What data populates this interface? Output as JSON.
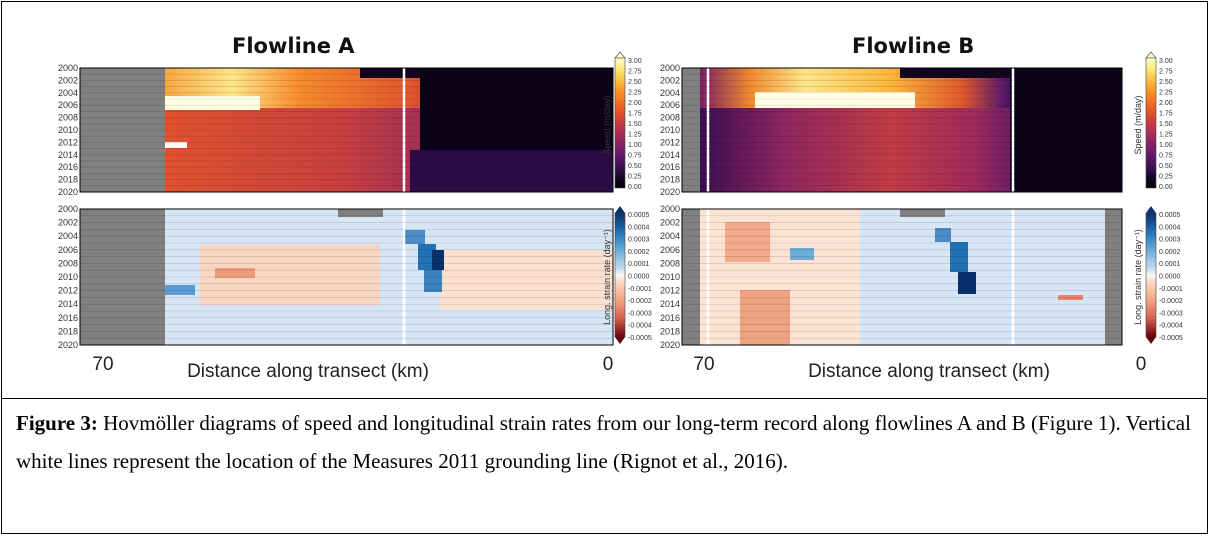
{
  "panels": [
    {
      "title": "Flowline A",
      "xlabel": "Distance along transect (km)",
      "x_ticks": [
        "70",
        "0"
      ],
      "years": [
        "2000",
        "2002",
        "2004",
        "2006",
        "2008",
        "2010",
        "2012",
        "2014",
        "2016",
        "2018",
        "2020"
      ],
      "speed_colorbar_label": "Speed (m/day)",
      "speed_ticks": [
        "3.00",
        "2.75",
        "2.50",
        "2.25",
        "2.00",
        "1.75",
        "1.50",
        "1.25",
        "1.00",
        "0.75",
        "0.50",
        "0.25",
        "0.00"
      ],
      "strain_colorbar_label": "Long. strain rate (day⁻¹)",
      "strain_ticks": [
        "0.0005",
        "0.0004",
        "0.0003",
        "0.0002",
        "0.0001",
        "0.0000",
        "-0.0001",
        "-0.0002",
        "-0.0003",
        "-0.0004",
        "-0.0005"
      ]
    },
    {
      "title": "Flowline B",
      "xlabel": "Distance along transect (km)",
      "x_ticks": [
        "70",
        "0"
      ],
      "years": [
        "2000",
        "2002",
        "2004",
        "2006",
        "2008",
        "2010",
        "2012",
        "2014",
        "2016",
        "2018",
        "2020"
      ],
      "speed_colorbar_label": "Speed (m/day)",
      "speed_ticks": [
        "3.00",
        "2.75",
        "2.50",
        "2.25",
        "2.00",
        "1.75",
        "1.50",
        "1.25",
        "1.00",
        "0.75",
        "0.50",
        "0.25",
        "0.00"
      ],
      "strain_colorbar_label": "Long. strain rate (day⁻¹)",
      "strain_ticks": [
        "0.0005",
        "0.0004",
        "0.0003",
        "0.0002",
        "0.0001",
        "0.0000",
        "-0.0001",
        "-0.0002",
        "-0.0003",
        "-0.0004",
        "-0.0005"
      ]
    }
  ],
  "caption": {
    "label": "Figure 3:",
    "text": " Hovmöller diagrams of speed and longitudinal strain rates from our long-term record along flowlines A and B (Figure 1). Vertical white lines represent the location of the Measures 2011 grounding line (Rignot et al., 2016)."
  },
  "colors": {
    "speed_scale": [
      "#ffffd0",
      "#fde26a",
      "#fba52c",
      "#f26a20",
      "#d03e3b",
      "#a02a5c",
      "#6c1d6b",
      "#3b0f55",
      "#12061f",
      "#000004"
    ],
    "strain_pos": "#08306b",
    "strain_neg": "#67000d",
    "no_data": "#808080"
  },
  "chart_data": [
    {
      "type": "heatmap",
      "title": "Flowline A",
      "xlabel": "Distance along transect (km)",
      "ylabel": "",
      "x_range": [
        70,
        0
      ],
      "y_range": [
        2000,
        2020
      ],
      "colorbar_label": "Speed (m/day)",
      "colorbar_range": [
        0.0,
        3.0
      ]
    },
    {
      "type": "heatmap",
      "title": "Flowline A",
      "xlabel": "Distance along transect (km)",
      "ylabel": "",
      "x_range": [
        70,
        0
      ],
      "y_range": [
        2000,
        2020
      ],
      "colorbar_label": "Long. strain rate (day⁻¹)",
      "colorbar_range": [
        -0.0005,
        0.0005
      ]
    },
    {
      "type": "heatmap",
      "title": "Flowline B",
      "xlabel": "Distance along transect (km)",
      "ylabel": "",
      "x_range": [
        70,
        0
      ],
      "y_range": [
        2000,
        2020
      ],
      "colorbar_label": "Speed (m/day)",
      "colorbar_range": [
        0.0,
        3.0
      ]
    },
    {
      "type": "heatmap",
      "title": "Flowline B",
      "xlabel": "Distance along transect (km)",
      "ylabel": "",
      "x_range": [
        70,
        0
      ],
      "y_range": [
        2000,
        2020
      ],
      "colorbar_label": "Long. strain rate (day⁻¹)",
      "colorbar_range": [
        -0.0005,
        0.0005
      ]
    }
  ]
}
